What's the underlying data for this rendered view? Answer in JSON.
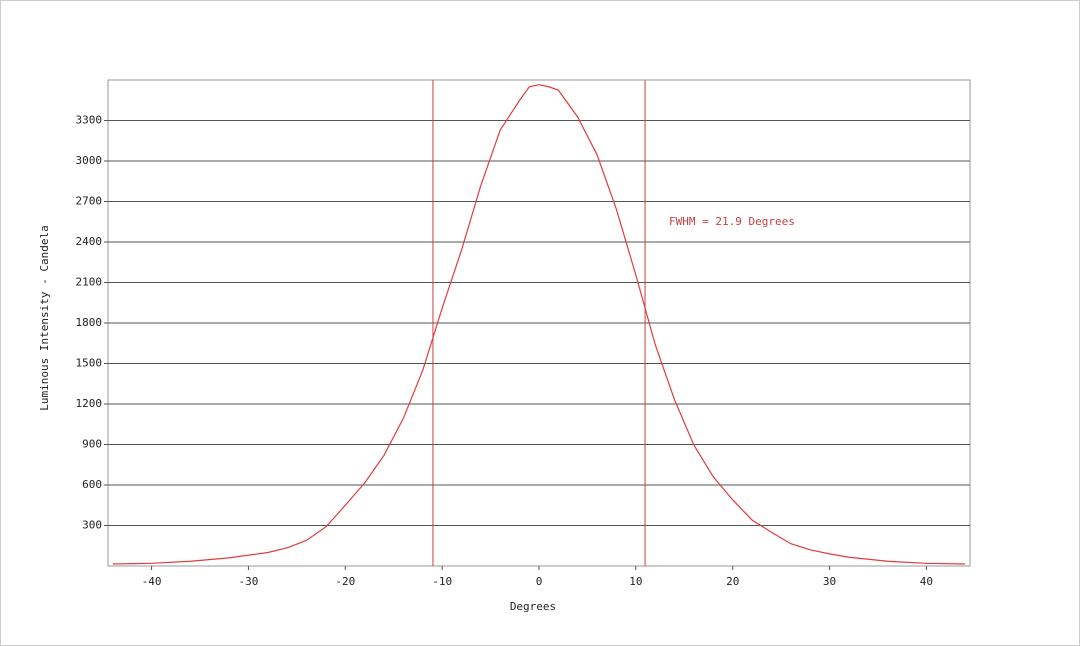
{
  "chart_data": {
    "type": "line",
    "xlabel": "Degrees",
    "ylabel": "Luminous Intensity - Candela",
    "annotation": "FWHM = 21.9 Degrees",
    "x": [
      -44,
      -40,
      -36,
      -32,
      -28,
      -26,
      -24,
      -22,
      -20,
      -18,
      -16,
      -14,
      -12,
      -10,
      -8,
      -6,
      -4,
      -2,
      -1,
      0,
      1,
      2,
      4,
      6,
      8,
      10,
      12,
      14,
      16,
      18,
      20,
      22,
      24,
      26,
      28,
      30,
      32,
      36,
      40,
      44
    ],
    "series": [
      {
        "name": "Luminous Intensity",
        "color": "#e03c3c",
        "values": [
          15,
          20,
          35,
          60,
          100,
          135,
          190,
          290,
          450,
          615,
          820,
          1095,
          1450,
          1910,
          2340,
          2820,
          3230,
          3450,
          3550,
          3565,
          3550,
          3525,
          3325,
          3045,
          2640,
          2155,
          1640,
          1230,
          895,
          660,
          490,
          340,
          250,
          165,
          120,
          90,
          65,
          35,
          20,
          15
        ]
      }
    ],
    "vlines": [
      -10.95,
      10.95
    ],
    "vline_color": "#c84040",
    "xlim": [
      -44.5,
      44.5
    ],
    "xticks": [
      -40,
      -30,
      -20,
      -10,
      0,
      10,
      20,
      30,
      40
    ],
    "ylim": [
      0,
      3600
    ],
    "yticks": [
      300,
      600,
      900,
      1200,
      1500,
      1800,
      2100,
      2400,
      2700,
      3000,
      3300
    ],
    "grid": true
  }
}
